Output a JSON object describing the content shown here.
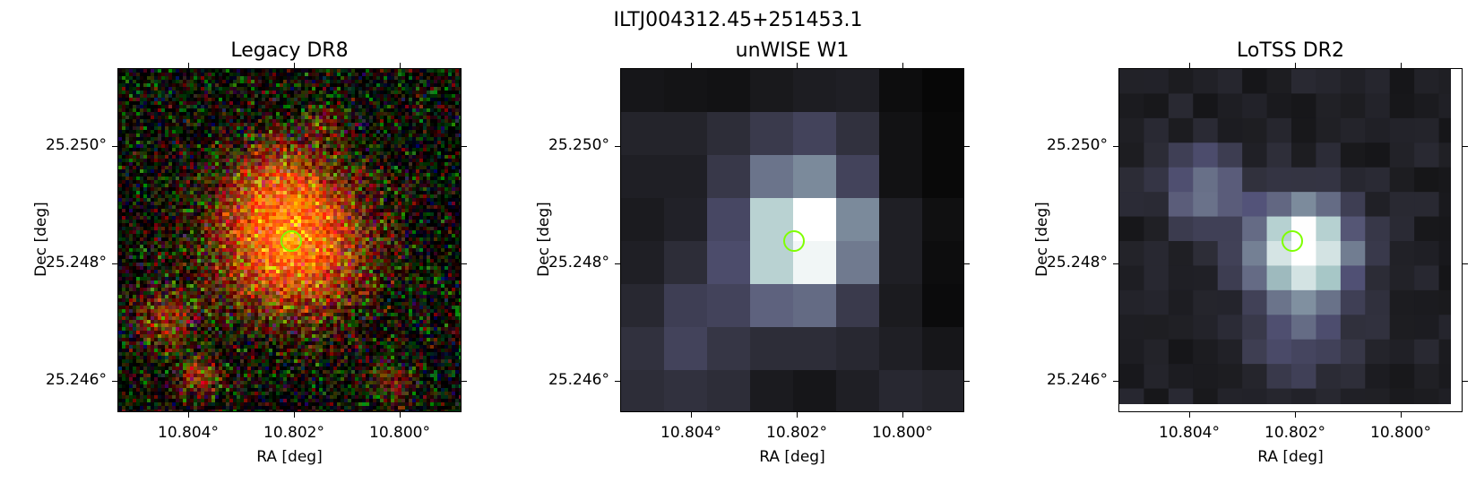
{
  "figure_title": "ILTJ004312.45+251453.1",
  "panels": [
    {
      "title": "Legacy DR8",
      "xlabel": "RA [deg]",
      "ylabel": "Dec [deg]",
      "xticks": [
        "10.804°",
        "10.802°",
        "10.800°"
      ],
      "yticks": [
        "25.250°",
        "25.248°",
        "25.246°"
      ],
      "image": "optical-rgb-cutout"
    },
    {
      "title": "unWISE W1",
      "xlabel": "RA [deg]",
      "ylabel": "Dec [deg]",
      "xticks": [
        "10.804°",
        "10.802°",
        "10.800°"
      ],
      "yticks": [
        "25.250°",
        "25.248°",
        "25.246°"
      ],
      "image": "infrared-bone-cutout"
    },
    {
      "title": "LoTSS DR2",
      "xlabel": "RA [deg]",
      "ylabel": "Dec [deg]",
      "xticks": [
        "10.804°",
        "10.802°",
        "10.800°"
      ],
      "yticks": [
        "25.250°",
        "25.248°",
        "25.246°"
      ],
      "image": "radio-bone-cutout"
    }
  ],
  "marker_color": "#7fff00"
}
